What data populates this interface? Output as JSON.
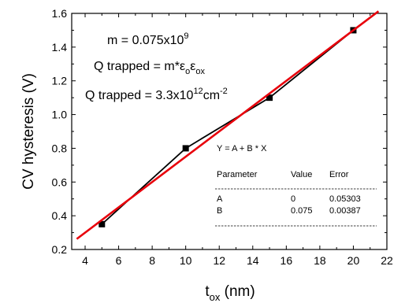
{
  "chart_data": {
    "type": "scatter",
    "title": "",
    "xlabel": {
      "main": "t",
      "sub": "ox",
      "unit": " (nm)"
    },
    "ylabel": "CV hysteresis (V)",
    "xlim": [
      3.2,
      22
    ],
    "ylim": [
      0.2,
      1.6
    ],
    "x_ticks": [
      "4",
      "6",
      "8",
      "10",
      "12",
      "14",
      "16",
      "18",
      "20",
      "22"
    ],
    "y_ticks": [
      "0.2",
      "0.4",
      "0.6",
      "0.8",
      "1.0",
      "1.2",
      "1.4",
      "1.6"
    ],
    "series": [
      {
        "x": [
          5,
          10,
          15,
          20
        ],
        "y": [
          0.35,
          0.8,
          1.1,
          1.5
        ],
        "color": "#000000",
        "marker": "square",
        "connect": true
      }
    ],
    "fit": {
      "x_range": [
        3.5,
        21.5
      ],
      "intercept": 0,
      "slope": 0.075,
      "color": "#e8000b"
    },
    "annotations": {
      "m_main": "m = 0.075x10",
      "m_sup": "9",
      "q1_main": "Q trapped = m*ε",
      "q1_sub1": "o",
      "q1_eps": "ε",
      "q1_sub2": "ox",
      "q2_main": "Q trapped = 3.3x10",
      "q2_sup1": "12",
      "q2_unit": "cm",
      "q2_sup2": "-2"
    },
    "fit_table": {
      "equation": "Y = A + B * X",
      "headers": [
        "Parameter",
        "Value",
        "Error"
      ],
      "rows": [
        [
          "A",
          "0",
          "0.05303"
        ],
        [
          "B",
          "0.075",
          "0.00387"
        ]
      ]
    }
  }
}
